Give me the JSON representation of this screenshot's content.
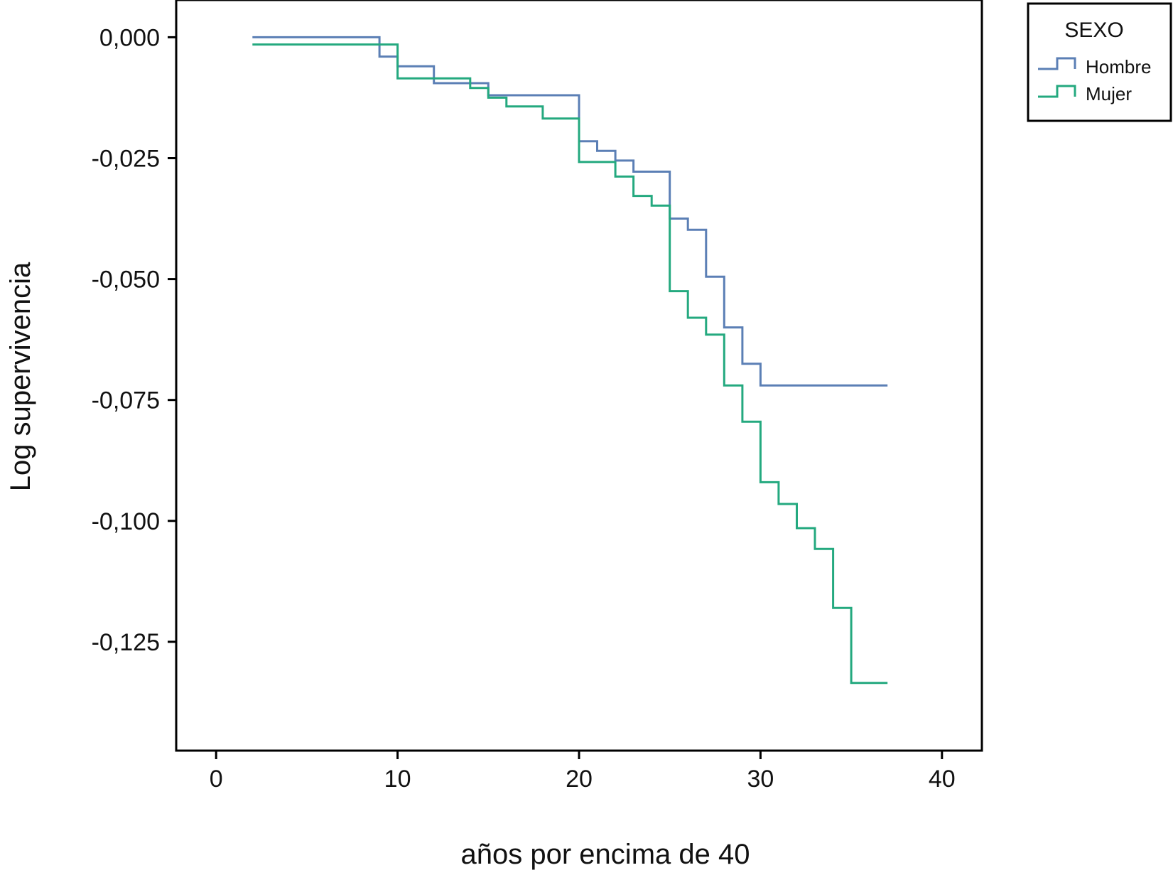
{
  "chart_data": {
    "type": "line",
    "step": true,
    "xlabel": "años por encima de 40",
    "ylabel": "Log supervivencia",
    "xlim": [
      -2.2,
      42.2
    ],
    "ylim": [
      -0.1475,
      0.0077
    ],
    "xticks": [
      0,
      10,
      20,
      30,
      40
    ],
    "xtick_labels": [
      "0",
      "10",
      "20",
      "30",
      "40"
    ],
    "yticks": [
      0,
      -0.025,
      -0.05,
      -0.075,
      -0.1,
      -0.125
    ],
    "ytick_labels": [
      "0,000",
      "-0,025",
      "-0,050",
      "-0,075",
      "-0,100",
      "-0,125"
    ],
    "grid": false,
    "legend": {
      "title": "SEXO",
      "position": "outside-top-right",
      "entries": [
        "Hombre",
        "Mujer"
      ]
    },
    "series": [
      {
        "name": "Hombre",
        "color": "#5b7fb5",
        "x": [
          2,
          9,
          10,
          12,
          15,
          20,
          21,
          22,
          23,
          25,
          26,
          27,
          28,
          29,
          30,
          37
        ],
        "y": [
          0,
          -0.004,
          -0.006,
          -0.0095,
          -0.012,
          -0.0215,
          -0.0235,
          -0.0255,
          -0.0278,
          -0.0375,
          -0.0398,
          -0.0495,
          -0.06,
          -0.0675,
          -0.072,
          -0.072
        ]
      },
      {
        "name": "Mujer",
        "color": "#24a97f",
        "x": [
          2,
          10,
          14,
          15,
          16,
          18,
          20,
          22,
          23,
          24,
          25,
          26,
          27,
          28,
          29,
          30,
          31,
          32,
          33,
          34,
          35,
          37
        ],
        "y": [
          -0.0015,
          -0.0085,
          -0.0105,
          -0.0125,
          -0.0143,
          -0.0168,
          -0.0258,
          -0.0288,
          -0.0328,
          -0.0348,
          -0.0525,
          -0.058,
          -0.0615,
          -0.072,
          -0.0795,
          -0.092,
          -0.0965,
          -0.1015,
          -0.1058,
          -0.118,
          -0.1335,
          -0.1335
        ]
      }
    ]
  }
}
